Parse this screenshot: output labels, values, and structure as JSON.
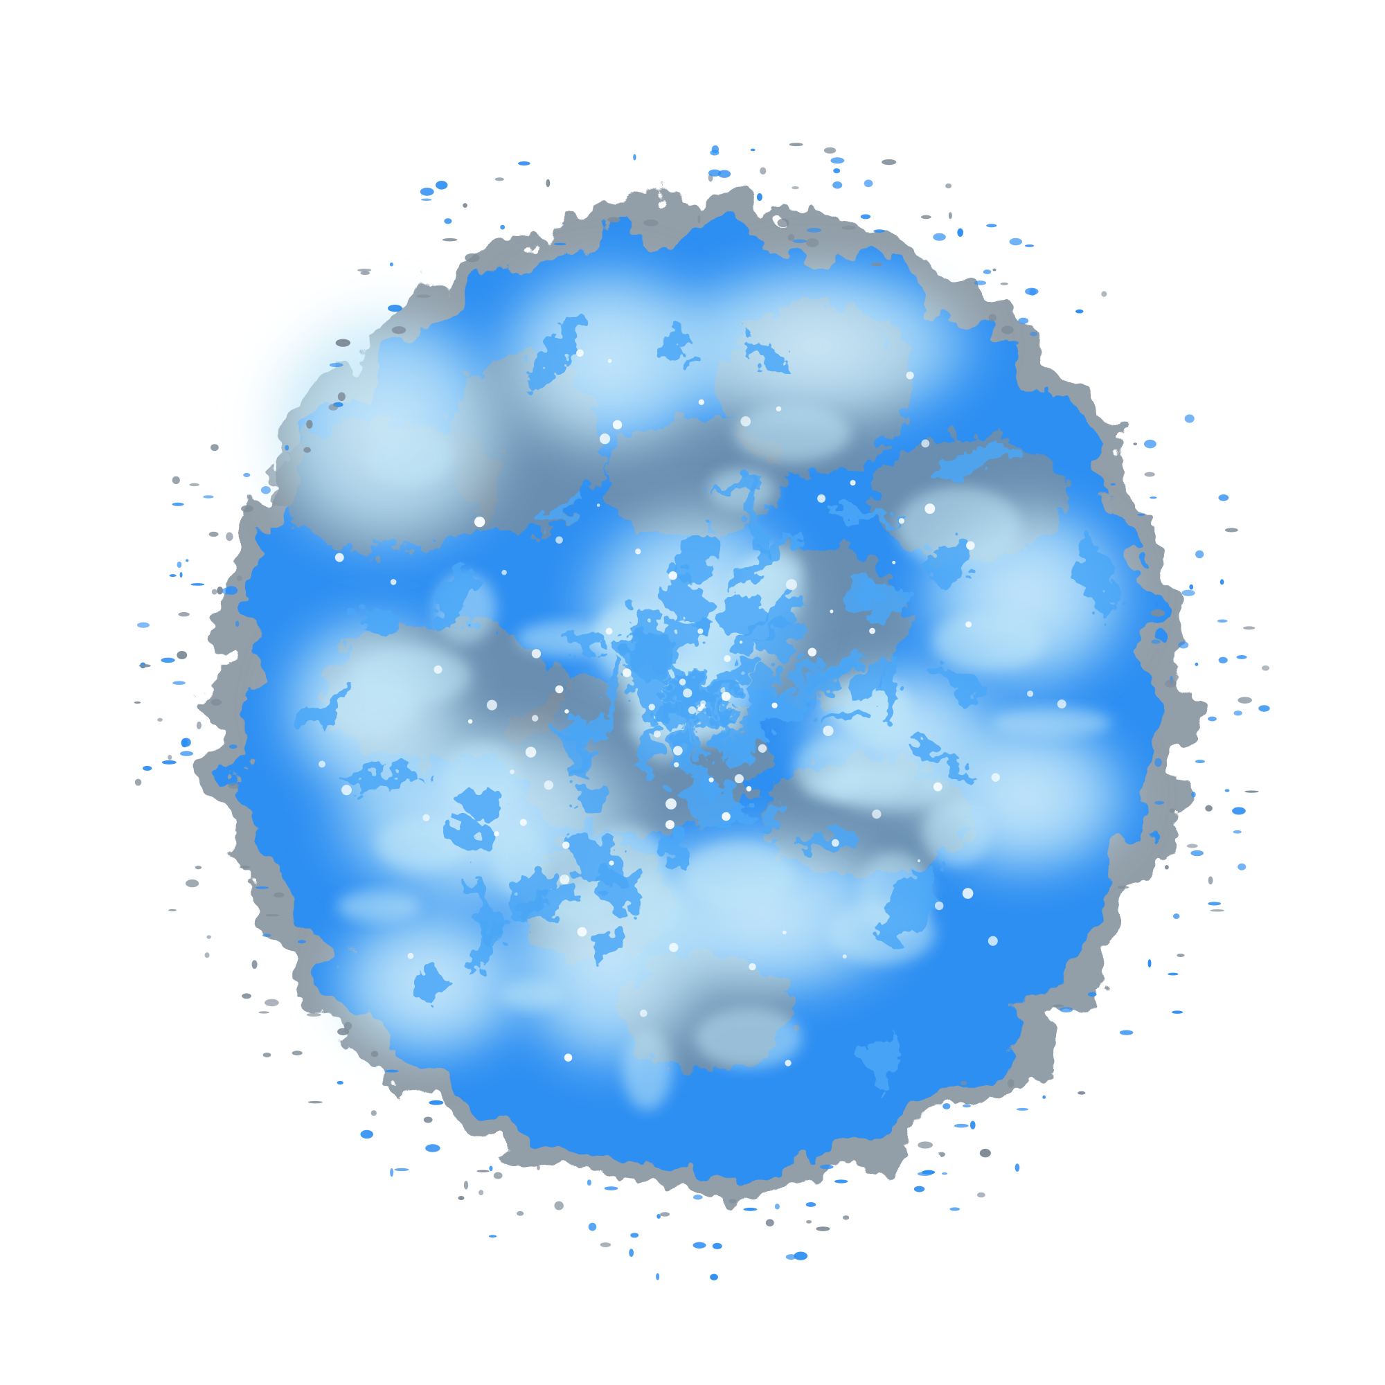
{
  "image": {
    "subject": "blue-energy-orb",
    "colors": {
      "background": "#ffffff",
      "core_blue": "#2f8ff2",
      "bright_blue": "#4aa7f7",
      "light_cyan": "#bfe6f8",
      "haze_cyan": "#9fd5f3",
      "smoke_gray": "#7f8d99",
      "white_spark": "#f5fbff"
    }
  }
}
